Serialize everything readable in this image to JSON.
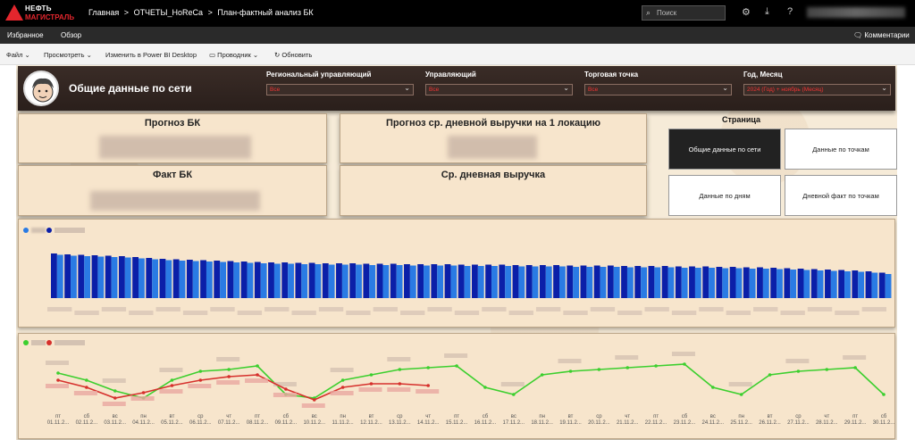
{
  "topbar": {
    "logo_line1": "НЕФТЬ",
    "logo_line2": "МАГИСТРАЛЬ",
    "breadcrumb": [
      "Главная",
      ">",
      "ОТЧЕТЫ_HoReCa",
      ">",
      "План-фактный анализ БК"
    ],
    "search_placeholder": "Поиск",
    "icons": [
      "gear-icon",
      "download-icon",
      "help-icon"
    ]
  },
  "navbar": {
    "items": [
      "Избранное",
      "Обзор"
    ],
    "comments": "Комментарии"
  },
  "toolbar": {
    "items": [
      "Файл ⌄",
      "Просмотреть ⌄",
      "Изменить в Power BI Desktop",
      "Проводник ⌄",
      "Обновить"
    ]
  },
  "report": {
    "title": "Общие данные по сети",
    "filters": [
      {
        "label": "Региональный управляющий",
        "value": "Все"
      },
      {
        "label": "Управляющий",
        "value": "Все"
      },
      {
        "label": "Торговая точка",
        "value": "Все"
      },
      {
        "label": "Год, Месяц",
        "value": "2024 (Год) + ноябрь (Месяц)"
      }
    ],
    "cards": [
      "Прогноз БК",
      "Прогноз ср. дневной выручки на 1 локацию",
      "Факт БК",
      "Ср. дневная выручка"
    ],
    "page_nav_label": "Страница",
    "page_buttons": [
      "Общие данные по сети",
      "Данные по точкам",
      "Данные по дням",
      "Дневной факт по точкам"
    ]
  },
  "colors": {
    "bar_light": "#2a7be4",
    "bar_dark": "#0b1fa8",
    "line_green": "#3ccf2e",
    "line_red": "#d6302c",
    "accent": "#e3262d"
  },
  "chart_data": [
    {
      "type": "bar",
      "series": [
        {
          "values": [
            100,
            98,
            97,
            96,
            95,
            94,
            92,
            90,
            88,
            87,
            86,
            85,
            84,
            83,
            82,
            81,
            80,
            80,
            79,
            79,
            78,
            78,
            78,
            77,
            77,
            77,
            76,
            76,
            76,
            76,
            75,
            75,
            75,
            75,
            74,
            74,
            74,
            74,
            73,
            73,
            73,
            73,
            72,
            72,
            72,
            72,
            71,
            71,
            71,
            70,
            70,
            69,
            69,
            68,
            67,
            66,
            65,
            64,
            63,
            62,
            60,
            57
          ]
        },
        {
          "values": [
            97,
            95,
            94,
            93,
            92,
            91,
            89,
            87,
            85,
            84,
            83,
            82,
            81,
            80,
            79,
            78,
            77,
            77,
            76,
            76,
            75,
            75,
            75,
            74,
            74,
            74,
            73,
            73,
            73,
            73,
            72,
            72,
            72,
            72,
            71,
            71,
            71,
            71,
            70,
            70,
            70,
            70,
            69,
            69,
            69,
            69,
            68,
            68,
            68,
            67,
            67,
            66,
            66,
            65,
            64,
            63,
            62,
            61,
            60,
            59,
            57,
            54
          ]
        }
      ]
    },
    {
      "type": "line",
      "categories": [
        "01.11.2...",
        "02.11.2...",
        "03.11.2...",
        "04.11.2...",
        "05.11.2...",
        "06.11.2...",
        "07.11.2...",
        "08.11.2...",
        "09.11.2...",
        "10.11.2...",
        "11.11.2...",
        "12.11.2...",
        "13.11.2...",
        "14.11.2...",
        "15.11.2...",
        "16.11.2...",
        "17.11.2...",
        "18.11.2...",
        "19.11.2...",
        "20.11.2...",
        "21.11.2...",
        "22.11.2...",
        "23.11.2...",
        "24.11.2...",
        "25.11.2...",
        "26.11.2...",
        "27.11.2...",
        "28.11.2...",
        "29.11.2...",
        "30.11.2..."
      ],
      "weekdays": [
        "пт",
        "сб",
        "вс",
        "пн",
        "вт",
        "ср",
        "чт",
        "пт",
        "сб",
        "вс",
        "пн",
        "вт",
        "ср",
        "чт",
        "пт",
        "сб",
        "вс",
        "пн",
        "вт",
        "ср",
        "чт",
        "пт",
        "сб",
        "вс",
        "пн",
        "вт",
        "ср",
        "чт",
        "пт",
        "сб"
      ],
      "series": [
        {
          "values": [
            72,
            68,
            62,
            58,
            68,
            73,
            74,
            76,
            60,
            58,
            68,
            71,
            74,
            75,
            76,
            64,
            60,
            71,
            73,
            74,
            75,
            76,
            77,
            64,
            60,
            71,
            73,
            74,
            75,
            60
          ]
        },
        {
          "values": [
            68,
            64,
            58,
            61,
            65,
            68,
            70,
            71,
            63,
            57,
            64,
            66,
            66,
            65,
            null,
            null,
            null,
            null,
            null,
            null,
            null,
            null,
            null,
            null,
            null,
            null,
            null,
            null,
            null,
            null
          ]
        }
      ]
    }
  ]
}
